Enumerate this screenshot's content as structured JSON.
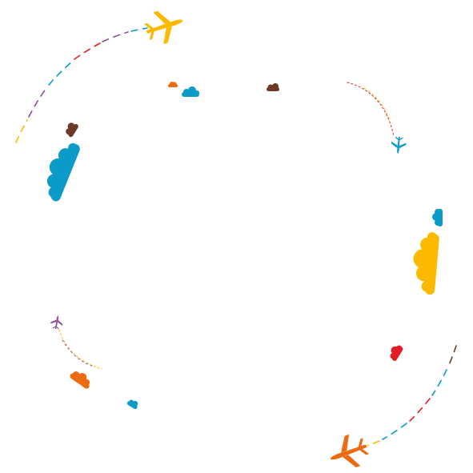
{
  "colors": {
    "background": "#ffffff",
    "yellow": "#fbb900",
    "blue": "#0a9bc9",
    "brown": "#6b3a24",
    "orange": "#ec6a12",
    "red": "#e41e26",
    "purple": "#8e4c97",
    "light_orange": "#f2a64a"
  },
  "elements": {
    "planes": [
      {
        "name": "plane-icon-top",
        "color": "yellow",
        "icon": "plane-icon"
      },
      {
        "name": "plane-icon-right",
        "color": "blue",
        "icon": "plane-icon"
      },
      {
        "name": "plane-icon-left",
        "color": "purple",
        "icon": "plane-icon"
      },
      {
        "name": "plane-icon-bottom",
        "color": "orange",
        "icon": "plane-icon"
      }
    ],
    "clouds": [
      {
        "name": "cloud-icon",
        "color": "blue"
      },
      {
        "name": "cloud-icon",
        "color": "yellow"
      },
      {
        "name": "cloud-icon",
        "color": "brown"
      },
      {
        "name": "cloud-icon",
        "color": "orange"
      },
      {
        "name": "cloud-icon",
        "color": "red"
      }
    ],
    "trails": [
      "dashed-flight-path",
      "dotted-flight-path"
    ]
  }
}
